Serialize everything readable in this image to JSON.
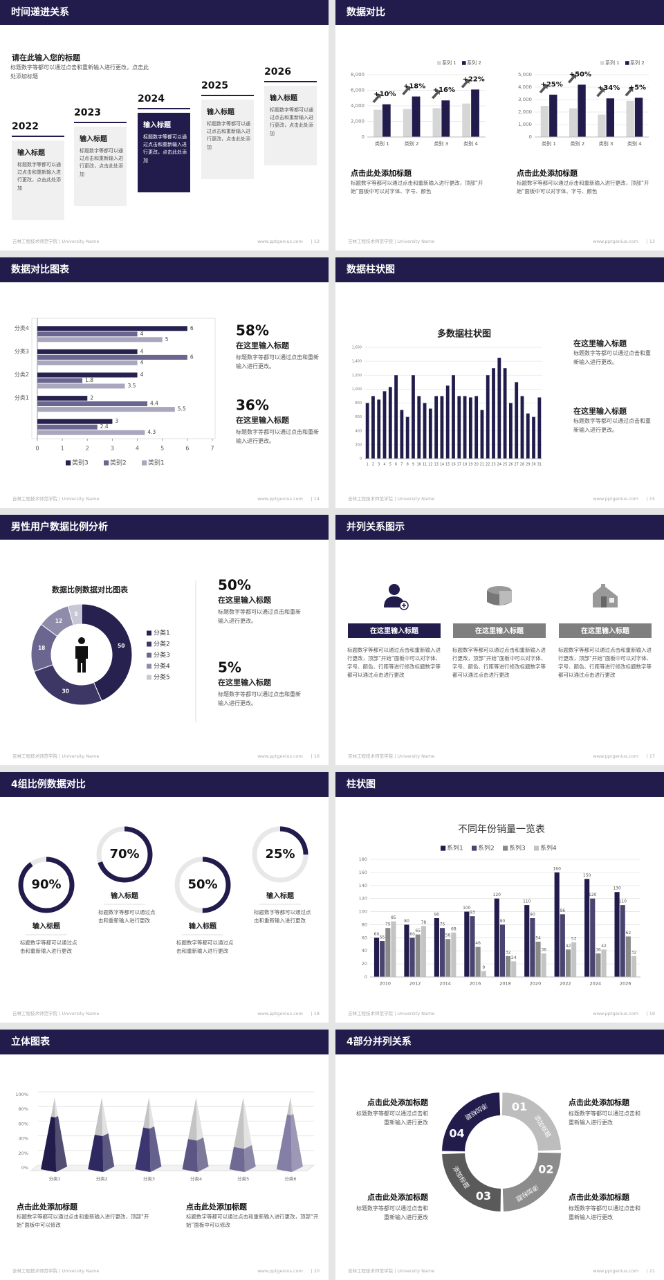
{
  "footer_left": "吉林工程技术师范学院 | University Name",
  "site": "www.pptgenius.com",
  "slides": [
    {
      "title": "时间递进关系",
      "page": "| 12",
      "heading": "请在此输入您的标题",
      "text": "标题数字等都可以通过点击和重新输入进行更改，点击此处添加标题",
      "items": [
        {
          "year": "2022",
          "title": "输入标题",
          "text": "标题数字等都可以通过点击和重新输入进行更改，点击此处添加"
        },
        {
          "year": "2023",
          "title": "输入标题",
          "text": "标题数字等都可以通过点击和重新输入进行更改，点击此处添加"
        },
        {
          "year": "2024",
          "title": "输入标题",
          "text": "标题数字等都可以通过点击和重新输入进行更改，点击此处添加"
        },
        {
          "year": "2025",
          "title": "输入标题",
          "text": "标题数字等都可以通过点击和重新输入进行更改，点击此处添加"
        },
        {
          "year": "2026",
          "title": "输入标题",
          "text": "标题数字等都可以通过点击和重新输入进行更改，点击此处添加"
        }
      ]
    },
    {
      "title": "数据对比",
      "page": "| 13",
      "charts": [
        {
          "type": "bar",
          "categories": [
            "类别 1",
            "类别 2",
            "类别 3",
            "类别 4"
          ],
          "series": [
            {
              "name": "系列 1",
              "color": "#d6d6d6",
              "values": [
                3500,
                3600,
                3700,
                4300
              ]
            },
            {
              "name": "系列 2",
              "color": "#211c4c",
              "values": [
                4200,
                5200,
                4700,
                6100
              ]
            }
          ],
          "ylim": [
            0,
            8000
          ],
          "yticks": [
            0,
            {
              "value": 2000,
              "label": "2,000"
            },
            {
              "value": 4000,
              "label": "4,000"
            },
            {
              "value": 6000,
              "label": "6,000"
            },
            {
              "value": 8000,
              "label": "8,000"
            }
          ],
          "grid": true,
          "annotations": [
            "+10%",
            "+18%",
            "+16%",
            "+22%"
          ]
        },
        {
          "type": "bar",
          "categories": [
            "类别 1",
            "类别 2",
            "类别 3",
            "类别 4"
          ],
          "series": [
            {
              "name": "系列 1",
              "color": "#d6d6d6",
              "values": [
                2500,
                2300,
                1800,
                2900
              ]
            },
            {
              "name": "系列 2",
              "color": "#211c4c",
              "values": [
                3400,
                4200,
                3100,
                3150
              ]
            }
          ],
          "ylim": [
            0,
            5000
          ],
          "yticks": [
            0,
            {
              "value": 1000,
              "label": "1,000"
            },
            {
              "value": 2000,
              "label": "2,000"
            },
            {
              "value": 3000,
              "label": "3,000"
            },
            {
              "value": 4000,
              "label": "4,000"
            },
            {
              "value": 5000,
              "label": "5,000"
            }
          ],
          "grid": true,
          "annotations": [
            "+25%",
            "+50%",
            "+34%",
            "+5%"
          ]
        }
      ],
      "blocks": [
        {
          "heading": "点击此处添加标题",
          "text": "标题数字等都可以通过点击和重新输入进行更改，顶部“开始”面板中可以对字体、字号、颜色"
        },
        {
          "heading": "点击此处添加标题",
          "text": "标题数字等都可以通过点击和重新输入进行更改，顶部“开始”面板中可以对字体、字号、颜色"
        }
      ]
    },
    {
      "title": "数据对比图表",
      "page": "| 14",
      "chart": {
        "type": "bar",
        "orientation": "horizontal",
        "categories": [
          null,
          "分类1",
          "分类2",
          "分类3",
          "分类4"
        ],
        "series": [
          {
            "name": "类别3",
            "color": "#26214f",
            "values": [
              3,
              2,
              4,
              4,
              6
            ]
          },
          {
            "name": "类别2",
            "color": "#6a6690",
            "values": [
              2.4,
              4.4,
              1.8,
              6,
              4
            ]
          },
          {
            "name": "类别1",
            "color": "#a9a7bd",
            "values": [
              4.3,
              5.5,
              3.5,
              4,
              5
            ]
          }
        ],
        "xlim": [
          0,
          7
        ],
        "xticks": [
          0,
          1,
          2,
          3,
          4,
          5,
          6,
          7
        ]
      },
      "stats": [
        {
          "value": "58%",
          "heading": "在这里输入标题",
          "text": "标题数字等都可以通过点击和重新输入进行更改。"
        },
        {
          "value": "36%",
          "heading": "在这里输入标题",
          "text": "标题数字等都可以通过点击和重新输入进行更改。"
        }
      ]
    },
    {
      "title": "数据柱状图",
      "page": "| 15",
      "chart": {
        "type": "bar",
        "title": "多数据柱状图",
        "categories": [
          "1",
          "2",
          "3",
          "4",
          "5",
          "6",
          "7",
          "8",
          "9",
          "10",
          "11",
          "12",
          "13",
          "14",
          "15",
          "16",
          "17",
          "18",
          "19",
          "20",
          "21",
          "22",
          "23",
          "24",
          "25",
          "26",
          "27",
          "28",
          "29",
          "30",
          "31"
        ],
        "values": [
          800,
          900,
          850,
          970,
          1030,
          1200,
          700,
          600,
          1200,
          900,
          800,
          720,
          900,
          900,
          1050,
          1200,
          900,
          900,
          880,
          900,
          700,
          1200,
          1300,
          1450,
          1300,
          800,
          1100,
          900,
          650,
          600,
          880
        ],
        "color": "#211c4c",
        "ylim": [
          0,
          1600
        ],
        "yticks": [
          0,
          200,
          400,
          600,
          800,
          {
            "value": 1000,
            "label": "1,000"
          },
          {
            "value": 1200,
            "label": "1,200"
          },
          {
            "value": 1400,
            "label": "1,400"
          },
          {
            "value": 1600,
            "label": "1,600"
          }
        ],
        "grid": true
      },
      "blocks": [
        {
          "heading": "在这里输入标题",
          "text": "标题数字等都可以通过点击和重新输入进行更改。"
        },
        {
          "heading": "在这里输入标题",
          "text": "标题数字等都可以通过点击和重新输入进行更改。"
        }
      ]
    },
    {
      "title": "男性用户数据比例分析",
      "page": "| 16",
      "chart": {
        "type": "donut",
        "title": "数据比例数据对比图表",
        "categories": [
          "分类1",
          "分类2",
          "分类3",
          "分类4",
          "分类5"
        ],
        "values": [
          50,
          30,
          18,
          12,
          5
        ],
        "colors": [
          "#26214f",
          "#3d3766",
          "#6b6690",
          "#8f8bab",
          "#c9c7d6"
        ]
      },
      "stats": [
        {
          "value": "50%",
          "heading": "在这里输入标题",
          "text": "标题数字等都可以通过点击和重新输入进行更改。"
        },
        {
          "value": "5%",
          "heading": "在这里输入标题",
          "text": "标题数字等都可以通过点击和重新输入进行更改。"
        }
      ]
    },
    {
      "title": "并列关系图示",
      "page": "| 17",
      "columns": [
        {
          "label": "在这里输入标题",
          "text": "标题数字等都可以通过点击和重新输入进行更改，顶部“开始”面板中可以对字体、字号、颜色、行距等进行修改标题数字等都可以通过点击进行更改"
        },
        {
          "label": "在这里输入标题",
          "text": "标题数字等都可以通过点击和重新输入进行更改，顶部“开始”面板中可以对字体、字号、颜色、行距等进行修改标题数字等都可以通过点击进行更改"
        },
        {
          "label": "在这里输入标题",
          "text": "标题数字等都可以通过点击和重新输入进行更改，顶部“开始”面板中可以对字体、字号、颜色、行距等进行修改标题数字等都可以通过点击进行更改"
        }
      ]
    },
    {
      "title": "4组比例数据对比",
      "page": "| 18",
      "chart": {
        "type": "ring",
        "values": [
          90,
          70,
          50,
          25
        ],
        "value_labels": [
          "90%",
          "70%",
          "50%",
          "25%"
        ],
        "ylim": [
          0,
          100
        ],
        "color": "#211c4c"
      },
      "items": [
        {
          "title": "输入标题",
          "text": "标题数字等都可以通过点击和重新输入进行更改"
        },
        {
          "title": "输入标题",
          "text": "标题数字等都可以通过点击和重新输入进行更改"
        },
        {
          "title": "输入标题",
          "text": "标题数字等都可以通过点击和重新输入进行更改"
        },
        {
          "title": "输入标题",
          "text": "标题数字等都可以通过点击和重新输入进行更改"
        }
      ]
    },
    {
      "title": "柱状图",
      "page": "| 19",
      "chart": {
        "type": "bar",
        "title": "不同年份销量一览表",
        "categories": [
          "2010",
          "2012",
          "2014",
          "2016",
          "2018",
          "2020",
          "2022",
          "2024",
          "2026"
        ],
        "series": [
          {
            "name": "系列1",
            "color": "#211c4c",
            "values": [
              60,
              80,
              90,
              100,
              120,
              110,
              160,
              150,
              130
            ]
          },
          {
            "name": "系列2",
            "color": "#4a4570",
            "values": [
              55,
              60,
              75,
              93,
              80,
              90,
              96,
              120,
              110
            ]
          },
          {
            "name": "系列3",
            "color": "#8a8a8a",
            "values": [
              75,
              65,
              58,
              46,
              32,
              54,
              42,
              36,
              62
            ]
          },
          {
            "name": "系列4",
            "color": "#c4c4c4",
            "values": [
              85,
              78,
              68,
              9,
              24,
              36,
              53,
              42,
              32
            ]
          }
        ],
        "ylim": [
          0,
          180
        ],
        "yticks": [
          0,
          20,
          40,
          60,
          80,
          100,
          120,
          140,
          160,
          180
        ],
        "grid": true,
        "data_labels": true
      }
    },
    {
      "title": "立体图表",
      "page": "| 20",
      "chart": {
        "type": "pyramid",
        "categories": [
          "分类1",
          "分类2",
          "分类3",
          "分类4",
          "分类5",
          "分类6"
        ],
        "values": [
          73,
          48,
          58,
          42,
          31,
          76
        ],
        "colors": [
          "#211c4c",
          "#2e2960",
          "#3b3570",
          "#5b5683",
          "#6f6a94",
          "#847fa6"
        ],
        "ylim": [
          0,
          100
        ],
        "yticks": [
          {
            "value": 0,
            "label": "0%"
          },
          {
            "value": 20,
            "label": "20%"
          },
          {
            "value": 40,
            "label": "40%"
          },
          {
            "value": 60,
            "label": "60%"
          },
          {
            "value": 80,
            "label": "80%"
          },
          {
            "value": 100,
            "label": "100%"
          }
        ],
        "grid": true
      },
      "blocks": [
        {
          "heading": "点击此处添加标题",
          "text": "标题数字等都可以通过点击和重新输入进行更改，顶部“开始”面板中可以修改"
        },
        {
          "heading": "点击此处添加标题",
          "text": "标题数字等都可以通过点击和重新输入进行更改，顶部“开始”面板中可以修改"
        }
      ]
    },
    {
      "title": "4部分并列关系",
      "page": "| 21",
      "segments": [
        {
          "number": "01",
          "label": "添加标题"
        },
        {
          "number": "02",
          "label": "添加标题"
        },
        {
          "number": "03",
          "label": "添加标题"
        },
        {
          "number": "04",
          "label": "添加标题"
        }
      ],
      "blocks": [
        {
          "heading": "点击此处添加标题",
          "text": "标题数字等都可以通过点击和重新输入进行更改"
        },
        {
          "heading": "点击此处添加标题",
          "text": "标题数字等都可以通过点击和重新输入进行更改"
        },
        {
          "heading": "点击此处添加标题",
          "text": "标题数字等都可以通过点击和重新输入进行更改"
        },
        {
          "heading": "点击此处添加标题",
          "text": "标题数字等都可以通过点击和重新输入进行更改"
        }
      ]
    }
  ]
}
